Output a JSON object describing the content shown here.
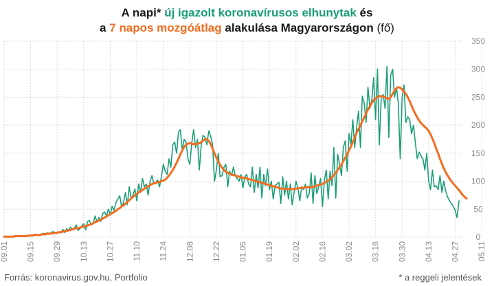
{
  "header": {
    "line1_a": "A napi* ",
    "line1_b": "új igazolt koronavírusos elhunytak",
    "line1_c": " és",
    "line2_a": "a ",
    "line2_b": "7 napos mozgóátlag",
    "line2_c": " alakulása Magyarországon ",
    "line2_d": "(fő)"
  },
  "footer": {
    "source": "Forrás: koronavirus.gov.hu, Portfolio",
    "note": "* a reggeli jelentések"
  },
  "colors": {
    "daily": "#1b9e77",
    "avg": "#f26d21",
    "grid": "#d9d9d9",
    "axis_text": "#888888"
  },
  "chart_data": {
    "type": "line",
    "x_start": "09.01",
    "x_tick_labels": [
      "09.01",
      "09.15",
      "09.29",
      "10.13",
      "10.27",
      "11.10",
      "11.24",
      "12.08",
      "12.22",
      "01.05",
      "01.19",
      "02.02",
      "02.16",
      "03.02",
      "03.16",
      "03.30",
      "04.13",
      "04.27",
      "05.11"
    ],
    "y_ticks": [
      0,
      50,
      100,
      150,
      200,
      250,
      300,
      350
    ],
    "ylim": [
      0,
      350
    ],
    "series": [
      {
        "name": "új igazolt koronavírusos elhunytak",
        "kind": "daily",
        "values": [
          0,
          2,
          1,
          1,
          2,
          1,
          3,
          2,
          1,
          2,
          2,
          3,
          3,
          4,
          2,
          4,
          5,
          5,
          3,
          5,
          6,
          7,
          4,
          8,
          6,
          9,
          10,
          7,
          8,
          10,
          8,
          14,
          8,
          15,
          12,
          18,
          14,
          16,
          22,
          12,
          15,
          20,
          24,
          13,
          28,
          30,
          22,
          24,
          38,
          27,
          35,
          28,
          42,
          45,
          38,
          50,
          40,
          55,
          48,
          62,
          68,
          74,
          54,
          62,
          80,
          58,
          90,
          70,
          75,
          86,
          65,
          95,
          80,
          105,
          90,
          95,
          75,
          100,
          110,
          95,
          98,
          102,
          90,
          108,
          130,
          118,
          112,
          140,
          125,
          165,
          170,
          150,
          188,
          192,
          155,
          175,
          170,
          140,
          130,
          168,
          192,
          160,
          175,
          120,
          165,
          182,
          178,
          165,
          190,
          180,
          165,
          100,
          120,
          150,
          108,
          110,
          125,
          130,
          90,
          118,
          110,
          125,
          110,
          105,
          100,
          112,
          88,
          108,
          112,
          95,
          90,
          125,
          80,
          112,
          88,
          125,
          70,
          112,
          92,
          122,
          85,
          100,
          68,
          92,
          95,
          98,
          60,
          108,
          75,
          100,
          68,
          95,
          58,
          80,
          100,
          88,
          65,
          90,
          85,
          95,
          70,
          78,
          115,
          60,
          110,
          78,
          90,
          105,
          55,
          102,
          120,
          68,
          118,
          92,
          160,
          70,
          148,
          130,
          110,
          160,
          172,
          118,
          185,
          165,
          210,
          160,
          195,
          225,
          160,
          252,
          240,
          205,
          268,
          230,
          245,
          285,
          210,
          300,
          165,
          248,
          255,
          230,
          305,
          178,
          290,
          300,
          250,
          268,
          240,
          140,
          250,
          272,
          205,
          215,
          210,
          185,
          200,
          168,
          140,
          152,
          145,
          140,
          120,
          150,
          100,
          85,
          120,
          90,
          92,
          85,
          110,
          80,
          100,
          82,
          72,
          65,
          60,
          55,
          48,
          35,
          65
        ]
      },
      {
        "name": "7 napos mozgóátlag",
        "kind": "avg",
        "values": [
          1,
          1,
          1,
          1,
          1,
          1,
          2,
          2,
          2,
          2,
          2,
          2,
          2,
          3,
          3,
          3,
          4,
          4,
          4,
          4,
          5,
          5,
          6,
          6,
          6,
          7,
          7,
          8,
          8,
          9,
          9,
          10,
          11,
          11,
          12,
          13,
          14,
          15,
          16,
          16,
          17,
          18,
          19,
          20,
          21,
          22,
          23,
          25,
          27,
          28,
          30,
          31,
          33,
          35,
          37,
          39,
          41,
          43,
          45,
          47,
          50,
          52,
          55,
          57,
          60,
          63,
          66,
          69,
          72,
          75,
          77,
          80,
          82,
          84,
          87,
          89,
          91,
          93,
          95,
          96,
          97,
          98,
          99,
          100,
          101,
          103,
          106,
          110,
          115,
          120,
          126,
          133,
          140,
          148,
          155,
          161,
          165,
          167,
          168,
          167,
          166,
          166,
          167,
          168,
          170,
          172,
          175,
          175,
          172,
          166,
          158,
          150,
          142,
          135,
          129,
          124,
          120,
          117,
          115,
          113,
          112,
          111,
          110,
          109,
          108,
          107,
          106,
          106,
          105,
          104,
          103,
          102,
          101,
          100,
          99,
          98,
          97,
          96,
          95,
          94,
          93,
          92,
          91,
          90,
          89,
          88,
          87,
          87,
          86,
          86,
          86,
          86,
          86,
          86,
          87,
          87,
          88,
          88,
          88,
          89,
          89,
          89,
          89,
          90,
          91,
          92,
          93,
          94,
          95,
          97,
          99,
          101,
          104,
          107,
          111,
          115,
          120,
          125,
          130,
          136,
          142,
          148,
          155,
          162,
          170,
          178,
          186,
          193,
          200,
          207,
          214,
          221,
          228,
          234,
          240,
          245,
          248,
          250,
          252,
          252,
          251,
          250,
          248,
          247,
          250,
          256,
          262,
          266,
          268,
          267,
          264,
          260,
          256,
          250,
          243,
          235,
          227,
          220,
          214,
          208,
          204,
          200,
          197,
          194,
          190,
          184,
          176,
          168,
          158,
          150,
          140,
          131,
          123,
          116,
          110,
          105,
          100,
          96,
          92,
          88,
          84,
          80,
          75,
          72,
          69
        ]
      }
    ]
  }
}
